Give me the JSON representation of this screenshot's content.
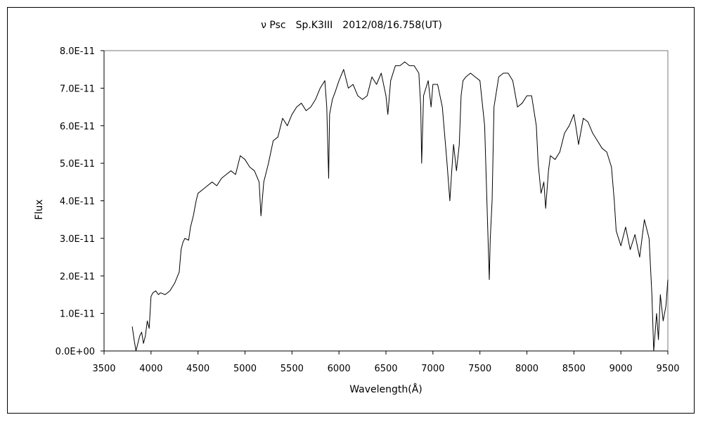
{
  "chart_data": {
    "type": "line",
    "title": "ν Psc　Sp.K3III　2012/08/16.758(UT)",
    "xlabel": "Wavelength(Å)",
    "ylabel": "Flux",
    "xlim": [
      3500,
      9500
    ],
    "ylim": [
      0,
      8e-11
    ],
    "x_ticks": [
      3500,
      4000,
      4500,
      5000,
      5500,
      6000,
      6500,
      7000,
      7500,
      8000,
      8500,
      9000,
      9500
    ],
    "x_tick_labels": [
      "3500",
      "4000",
      "4500",
      "5000",
      "5500",
      "6000",
      "6500",
      "7000",
      "7500",
      "8000",
      "8500",
      "9000",
      "9500"
    ],
    "y_ticks": [
      0,
      1e-11,
      2e-11,
      3e-11,
      4e-11,
      5e-11,
      6e-11,
      7e-11,
      8e-11
    ],
    "y_tick_labels": [
      "0.0E+00",
      "1.0E-11",
      "2.0E-11",
      "3.0E-11",
      "4.0E-11",
      "5.0E-11",
      "6.0E-11",
      "7.0E-11",
      "8.0E-11"
    ],
    "grid": false,
    "series": [
      {
        "color": "#000000",
        "x": [
          3800,
          3820,
          3840,
          3860,
          3880,
          3900,
          3920,
          3940,
          3960,
          3980,
          4000,
          4020,
          4050,
          4080,
          4100,
          4150,
          4200,
          4250,
          4300,
          4320,
          4340,
          4360,
          4400,
          4420,
          4450,
          4480,
          4500,
          4550,
          4600,
          4650,
          4700,
          4750,
          4800,
          4850,
          4900,
          4950,
          5000,
          5050,
          5100,
          5150,
          5170,
          5200,
          5250,
          5300,
          5350,
          5400,
          5450,
          5500,
          5550,
          5600,
          5650,
          5700,
          5750,
          5800,
          5850,
          5870,
          5890,
          5900,
          5930,
          5960,
          6000,
          6050,
          6100,
          6150,
          6200,
          6250,
          6300,
          6350,
          6400,
          6450,
          6500,
          6520,
          6550,
          6600,
          6650,
          6700,
          6750,
          6800,
          6850,
          6870,
          6880,
          6900,
          6950,
          6980,
          7000,
          7050,
          7100,
          7150,
          7180,
          7200,
          7220,
          7250,
          7280,
          7300,
          7320,
          7350,
          7400,
          7450,
          7500,
          7550,
          7580,
          7600,
          7610,
          7630,
          7650,
          7700,
          7750,
          7800,
          7850,
          7900,
          7950,
          8000,
          8050,
          8100,
          8120,
          8150,
          8180,
          8200,
          8230,
          8250,
          8300,
          8350,
          8400,
          8450,
          8500,
          8520,
          8550,
          8600,
          8650,
          8700,
          8750,
          8800,
          8850,
          8900,
          8930,
          8950,
          9000,
          9050,
          9100,
          9150,
          9200,
          9250,
          9300,
          9330,
          9350,
          9380,
          9400,
          9420,
          9450,
          9480,
          9500
        ],
        "y": [
          6.5e-12,
          3e-12,
          0,
          2e-12,
          4e-12,
          5e-12,
          2e-12,
          4e-12,
          8e-12,
          6e-12,
          1.45e-11,
          1.55e-11,
          1.6e-11,
          1.5e-11,
          1.55e-11,
          1.5e-11,
          1.6e-11,
          1.8e-11,
          2.1e-11,
          2.7e-11,
          2.9e-11,
          3e-11,
          2.95e-11,
          3.3e-11,
          3.6e-11,
          4e-11,
          4.2e-11,
          4.3e-11,
          4.4e-11,
          4.5e-11,
          4.4e-11,
          4.6e-11,
          4.7e-11,
          4.8e-11,
          4.7e-11,
          5.2e-11,
          5.1e-11,
          4.9e-11,
          4.8e-11,
          4.5e-11,
          3.6e-11,
          4.5e-11,
          5e-11,
          5.6e-11,
          5.7e-11,
          6.2e-11,
          6e-11,
          6.3e-11,
          6.5e-11,
          6.6e-11,
          6.4e-11,
          6.5e-11,
          6.7e-11,
          7e-11,
          7.2e-11,
          6.5e-11,
          4.6e-11,
          6.3e-11,
          6.7e-11,
          6.9e-11,
          7.2e-11,
          7.5e-11,
          7e-11,
          7.1e-11,
          6.8e-11,
          6.7e-11,
          6.8e-11,
          7.3e-11,
          7.1e-11,
          7.4e-11,
          6.8e-11,
          6.3e-11,
          7.2e-11,
          7.6e-11,
          7.6e-11,
          7.7e-11,
          7.6e-11,
          7.6e-11,
          7.4e-11,
          6.5e-11,
          5e-11,
          6.8e-11,
          7.2e-11,
          6.5e-11,
          7.1e-11,
          7.1e-11,
          6.5e-11,
          5e-11,
          4e-11,
          4.8e-11,
          5.5e-11,
          4.8e-11,
          5.5e-11,
          6.8e-11,
          7.2e-11,
          7.3e-11,
          7.4e-11,
          7.3e-11,
          7.2e-11,
          6e-11,
          3.5e-11,
          1.9e-11,
          3e-11,
          4e-11,
          6.5e-11,
          7.3e-11,
          7.4e-11,
          7.4e-11,
          7.2e-11,
          6.5e-11,
          6.6e-11,
          6.8e-11,
          6.8e-11,
          6e-11,
          5e-11,
          4.2e-11,
          4.5e-11,
          3.8e-11,
          4.8e-11,
          5.2e-11,
          5.1e-11,
          5.3e-11,
          5.8e-11,
          6e-11,
          6.3e-11,
          6e-11,
          5.5e-11,
          6.2e-11,
          6.1e-11,
          5.8e-11,
          5.6e-11,
          5.4e-11,
          5.3e-11,
          4.9e-11,
          4e-11,
          3.2e-11,
          2.8e-11,
          3.3e-11,
          2.7e-11,
          3.1e-11,
          2.5e-11,
          3.5e-11,
          3e-11,
          1.5e-11,
          0,
          1e-11,
          3e-12,
          1.5e-11,
          8e-12,
          1.2e-11,
          1.9e-11
        ]
      }
    ]
  }
}
